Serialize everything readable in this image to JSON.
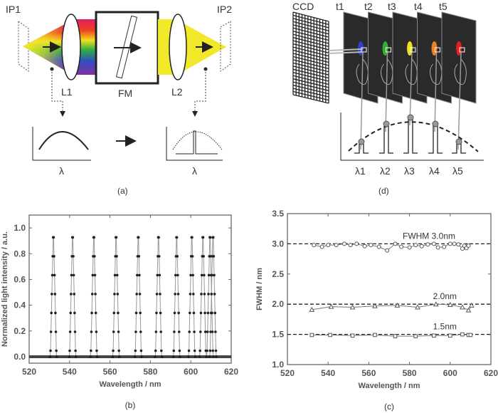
{
  "panel_a": {
    "caption": "(a)",
    "labels": {
      "ip1": "IP1",
      "ip2": "IP2",
      "l1": "L1",
      "l2": "L2",
      "fm": "FM"
    },
    "graph_axis_label_left": "λ",
    "graph_axis_label_right": "λ",
    "colors": {
      "beam_after_filter": "#f2e82a"
    }
  },
  "panel_d": {
    "caption": "(d)",
    "ccd_label": "CCD",
    "frames": [
      {
        "time": "t1",
        "wavelength": "λ1",
        "color": "#3040d0"
      },
      {
        "time": "t2",
        "wavelength": "λ2",
        "color": "#30b030"
      },
      {
        "time": "t3",
        "wavelength": "λ3",
        "color": "#e8e020"
      },
      {
        "time": "t4",
        "wavelength": "λ4",
        "color": "#f08020"
      },
      {
        "time": "t5",
        "wavelength": "λ5",
        "color": "#e02020"
      }
    ]
  },
  "chart_data": [
    {
      "id": "b",
      "type": "line",
      "caption": "(b)",
      "xlabel": "Wavelength / nm",
      "ylabel": "Normalized light intensity / a.u.",
      "xlim": [
        520,
        620
      ],
      "ylim": [
        -0.05,
        1.1
      ],
      "xticks": [
        "520",
        "540",
        "560",
        "580",
        "600",
        "620"
      ],
      "yticks": [
        "0.0",
        "0.2",
        "0.4",
        "0.6",
        "0.8",
        "1.0"
      ],
      "grid": false,
      "peak_centers_nm": [
        532,
        541.5,
        552,
        563,
        574,
        584,
        593,
        600.5,
        606,
        609.5,
        611
      ],
      "peak_fwhm_nm": 1.5,
      "peak_height": 1.0,
      "baseline": 0.0
    },
    {
      "id": "c",
      "type": "line",
      "caption": "(c)",
      "xlabel": "Wavelength / nm",
      "ylabel": "FWHM / nm",
      "xlim": [
        520,
        620
      ],
      "ylim": [
        1.0,
        3.5
      ],
      "xticks": [
        "520",
        "540",
        "560",
        "580",
        "600",
        "620"
      ],
      "yticks": [
        "1.0",
        "1.5",
        "2.0",
        "2.5",
        "3.0",
        "3.5"
      ],
      "grid": false,
      "reference_lines": [
        {
          "y": 3.0,
          "label": "FWHM 3.0nm"
        },
        {
          "y": 2.0,
          "label": "2.0nm"
        },
        {
          "y": 1.5,
          "label": "1.5nm"
        }
      ],
      "series": [
        {
          "marker": "circle",
          "x": [
            533,
            537,
            540,
            544,
            548,
            551,
            554,
            558,
            561,
            565,
            569,
            573,
            576,
            580,
            583,
            586,
            589,
            592,
            594,
            597,
            600,
            602,
            604,
            606,
            607,
            608,
            609
          ],
          "y": [
            2.98,
            2.95,
            2.98,
            2.98,
            3.0,
            2.98,
            3.0,
            2.96,
            2.98,
            2.95,
            2.89,
            3.0,
            2.95,
            2.94,
            2.98,
            2.96,
            2.99,
            3.0,
            2.94,
            2.95,
            3.0,
            3.0,
            2.99,
            2.92,
            2.97,
            2.93,
            2.97
          ]
        },
        {
          "marker": "triangle",
          "x": [
            532,
            541.5,
            552,
            563,
            574,
            584,
            593,
            600,
            606,
            609,
            610.5
          ],
          "y": [
            1.91,
            1.96,
            1.95,
            1.97,
            1.98,
            1.95,
            2.0,
            1.99,
            1.95,
            1.9,
            1.98
          ]
        },
        {
          "marker": "square",
          "x": [
            532,
            541,
            552,
            563,
            573,
            583,
            592,
            600,
            606,
            609,
            610
          ],
          "y": [
            1.49,
            1.49,
            1.48,
            1.49,
            1.47,
            1.47,
            1.48,
            1.48,
            1.5,
            1.49,
            1.49
          ]
        }
      ]
    }
  ]
}
